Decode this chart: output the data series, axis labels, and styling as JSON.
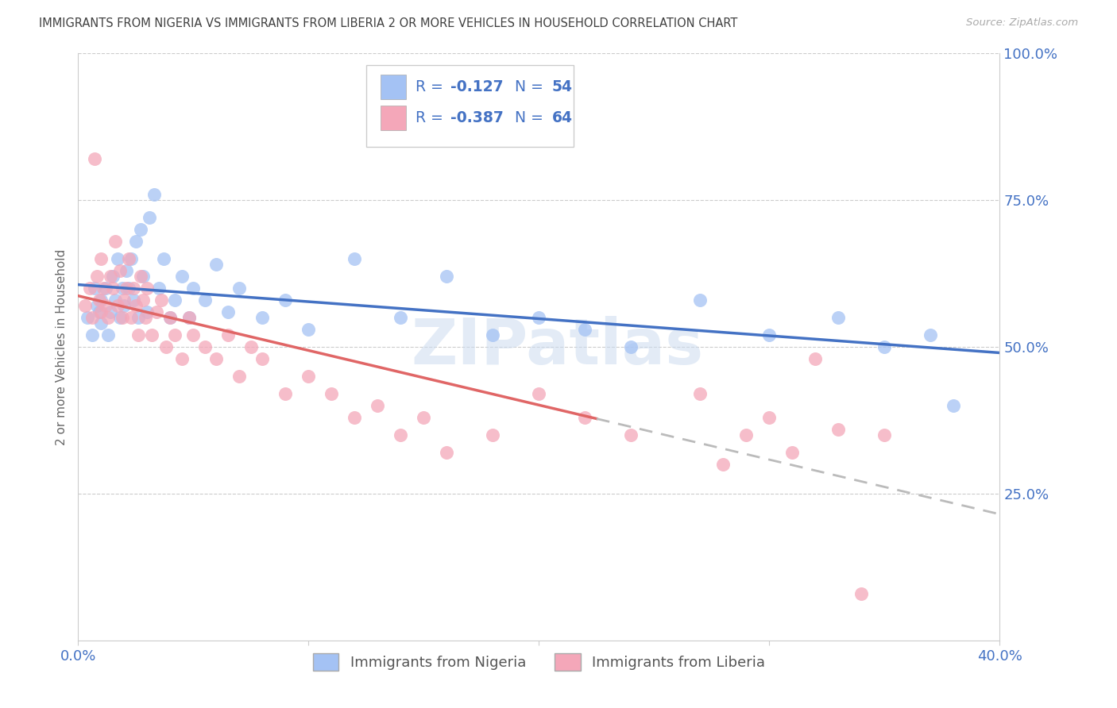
{
  "title": "IMMIGRANTS FROM NIGERIA VS IMMIGRANTS FROM LIBERIA 2 OR MORE VEHICLES IN HOUSEHOLD CORRELATION CHART",
  "source": "Source: ZipAtlas.com",
  "ylabel": "2 or more Vehicles in Household",
  "xlim": [
    0.0,
    0.4
  ],
  "ylim": [
    0.0,
    1.0
  ],
  "nigeria_color": "#a4c2f4",
  "liberia_color": "#f4a7b9",
  "nigeria_line_color": "#4472c4",
  "liberia_line_color": "#e06666",
  "liberia_dash_color": "#bbbbbb",
  "R_nigeria": -0.127,
  "N_nigeria": 54,
  "R_liberia": -0.387,
  "N_liberia": 64,
  "watermark": "ZIPatlas",
  "legend_nigeria": "Immigrants from Nigeria",
  "legend_liberia": "Immigrants from Liberia",
  "background_color": "#ffffff",
  "grid_color": "#cccccc",
  "axis_label_color": "#4472c4",
  "title_color": "#404040",
  "nigeria_x": [
    0.004,
    0.006,
    0.007,
    0.008,
    0.009,
    0.01,
    0.01,
    0.012,
    0.013,
    0.014,
    0.015,
    0.016,
    0.017,
    0.018,
    0.019,
    0.02,
    0.021,
    0.022,
    0.023,
    0.024,
    0.025,
    0.026,
    0.027,
    0.028,
    0.03,
    0.031,
    0.033,
    0.035,
    0.037,
    0.04,
    0.042,
    0.045,
    0.048,
    0.05,
    0.055,
    0.06,
    0.065,
    0.07,
    0.08,
    0.09,
    0.1,
    0.12,
    0.14,
    0.16,
    0.18,
    0.2,
    0.22,
    0.24,
    0.27,
    0.3,
    0.33,
    0.35,
    0.37,
    0.38
  ],
  "nigeria_y": [
    0.55,
    0.52,
    0.6,
    0.57,
    0.56,
    0.54,
    0.58,
    0.6,
    0.52,
    0.56,
    0.62,
    0.58,
    0.65,
    0.55,
    0.6,
    0.57,
    0.63,
    0.6,
    0.65,
    0.58,
    0.68,
    0.55,
    0.7,
    0.62,
    0.56,
    0.72,
    0.76,
    0.6,
    0.65,
    0.55,
    0.58,
    0.62,
    0.55,
    0.6,
    0.58,
    0.64,
    0.56,
    0.6,
    0.55,
    0.58,
    0.53,
    0.65,
    0.55,
    0.62,
    0.52,
    0.55,
    0.53,
    0.5,
    0.58,
    0.52,
    0.55,
    0.5,
    0.52,
    0.4
  ],
  "liberia_x": [
    0.003,
    0.005,
    0.006,
    0.007,
    0.008,
    0.009,
    0.01,
    0.01,
    0.011,
    0.012,
    0.013,
    0.014,
    0.015,
    0.016,
    0.017,
    0.018,
    0.019,
    0.02,
    0.021,
    0.022,
    0.023,
    0.024,
    0.025,
    0.026,
    0.027,
    0.028,
    0.029,
    0.03,
    0.032,
    0.034,
    0.036,
    0.038,
    0.04,
    0.042,
    0.045,
    0.048,
    0.05,
    0.055,
    0.06,
    0.065,
    0.07,
    0.075,
    0.08,
    0.09,
    0.1,
    0.11,
    0.12,
    0.13,
    0.14,
    0.15,
    0.16,
    0.18,
    0.2,
    0.22,
    0.24,
    0.27,
    0.28,
    0.29,
    0.3,
    0.31,
    0.32,
    0.33,
    0.34,
    0.35
  ],
  "liberia_y": [
    0.57,
    0.6,
    0.55,
    0.82,
    0.62,
    0.58,
    0.56,
    0.65,
    0.6,
    0.57,
    0.55,
    0.62,
    0.6,
    0.68,
    0.57,
    0.63,
    0.55,
    0.58,
    0.6,
    0.65,
    0.55,
    0.6,
    0.57,
    0.52,
    0.62,
    0.58,
    0.55,
    0.6,
    0.52,
    0.56,
    0.58,
    0.5,
    0.55,
    0.52,
    0.48,
    0.55,
    0.52,
    0.5,
    0.48,
    0.52,
    0.45,
    0.5,
    0.48,
    0.42,
    0.45,
    0.42,
    0.38,
    0.4,
    0.35,
    0.38,
    0.32,
    0.35,
    0.42,
    0.38,
    0.35,
    0.42,
    0.3,
    0.35,
    0.38,
    0.32,
    0.48,
    0.36,
    0.08,
    0.35
  ]
}
